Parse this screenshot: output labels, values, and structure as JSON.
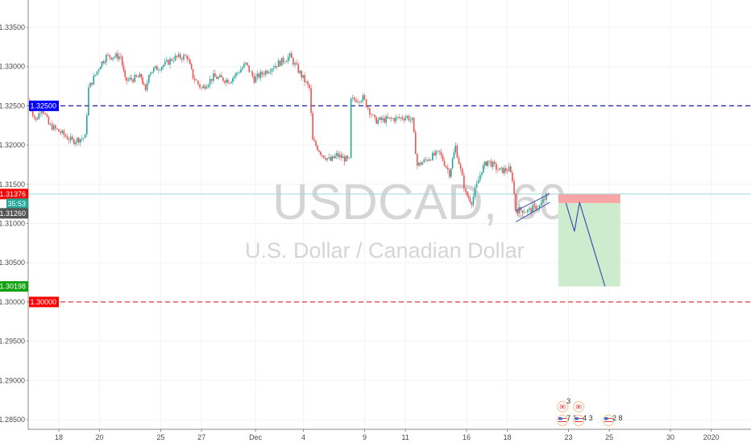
{
  "chart_data": {
    "type": "candlestick",
    "symbol_watermark": "USDCAD, 60",
    "description_watermark": "U.S. Dollar / Canadian Dollar",
    "ylim": [
      1.283,
      1.339
    ],
    "y_ticks": [
      "1.33500",
      "1.33000",
      "1.32500",
      "1.32000",
      "1.31500",
      "1.31000",
      "1.30500",
      "1.30000",
      "1.29500",
      "1.29000",
      "1.28500"
    ],
    "x_ticks": [
      {
        "date": "11-18",
        "label": "18"
      },
      {
        "date": "11-20",
        "label": "20"
      },
      {
        "date": "11-25",
        "label": "25"
      },
      {
        "date": "11-27",
        "label": "27"
      },
      {
        "date": "12-01",
        "label": "Dec"
      },
      {
        "date": "12-04",
        "label": "4"
      },
      {
        "date": "12-09",
        "label": "9"
      },
      {
        "date": "12-11",
        "label": "11"
      },
      {
        "date": "12-16",
        "label": "16"
      },
      {
        "date": "12-18",
        "label": "18"
      },
      {
        "date": "12-23",
        "label": "23"
      },
      {
        "date": "12-25",
        "label": "25"
      },
      {
        "date": "12-30",
        "label": "30"
      },
      {
        "date": "01-01",
        "label": "2020"
      }
    ],
    "grid": true,
    "colors": {
      "up": "#26a69a",
      "down": "#ef5350",
      "axis": "#888888",
      "grid": "#f3f3f3"
    },
    "price_path": [
      [
        "11-14 12",
        1.3257
      ],
      [
        "11-14 21",
        1.3231
      ],
      [
        "11-15 04",
        1.3249
      ],
      [
        "11-15 12",
        1.3226
      ],
      [
        "11-18 02",
        1.3216
      ],
      [
        "11-18 16",
        1.3205
      ],
      [
        "11-19 07",
        1.321
      ],
      [
        "11-19 11",
        1.3272
      ],
      [
        "11-20 01",
        1.3303
      ],
      [
        "11-20 08",
        1.3313
      ],
      [
        "11-21 01",
        1.3313
      ],
      [
        "11-21 06",
        1.3282
      ],
      [
        "11-22 01",
        1.3287
      ],
      [
        "11-22 06",
        1.3267
      ],
      [
        "11-22 10",
        1.3293
      ],
      [
        "11-25 05",
        1.3303
      ],
      [
        "11-25 15",
        1.3311
      ],
      [
        "11-26 07",
        1.3313
      ],
      [
        "11-26 14",
        1.3287
      ],
      [
        "11-27 00",
        1.3272
      ],
      [
        "11-27 14",
        1.3287
      ],
      [
        "11-28 09",
        1.3282
      ],
      [
        "11-29 04",
        1.3303
      ],
      [
        "11-29 14",
        1.3284
      ],
      [
        "12-02 09",
        1.3298
      ],
      [
        "12-03 08",
        1.3313
      ],
      [
        "12-03 18",
        1.3295
      ],
      [
        "12-04 07",
        1.3272
      ],
      [
        "12-04 11",
        1.3205
      ],
      [
        "12-04 22",
        1.3188
      ],
      [
        "12-05 08",
        1.318
      ],
      [
        "12-05 15",
        1.3187
      ],
      [
        "12-06 06",
        1.318
      ],
      [
        "12-06 08",
        1.3257
      ],
      [
        "12-06 22",
        1.326
      ],
      [
        "12-09 12",
        1.3231
      ],
      [
        "12-10 07",
        1.3233
      ],
      [
        "12-11 02",
        1.3236
      ],
      [
        "12-11 08",
        1.3231
      ],
      [
        "12-11 14",
        1.3174
      ],
      [
        "12-12 06",
        1.3185
      ],
      [
        "12-12 16",
        1.319
      ],
      [
        "12-13 04",
        1.3164
      ],
      [
        "12-13 11",
        1.3198
      ],
      [
        "12-13 23",
        1.3138
      ],
      [
        "12-16 06",
        1.3128
      ],
      [
        "12-16 18",
        1.3169
      ],
      [
        "12-17 01",
        1.318
      ],
      [
        "12-17 15",
        1.3167
      ],
      [
        "12-18 02",
        1.3169
      ],
      [
        "12-18 06",
        1.3157
      ],
      [
        "12-18 10",
        1.3118
      ],
      [
        "12-19 00",
        1.3116
      ],
      [
        "12-19 14",
        1.3122
      ],
      [
        "12-20 00",
        1.31376
      ]
    ],
    "horizontal_lines": [
      {
        "price": 1.325,
        "label": "1.32500",
        "color": "#1a1aa6",
        "label_bg": "#0000ff",
        "style": "dashed"
      },
      {
        "price": 1.3,
        "label": "1.30000",
        "color": "#e53935",
        "label_bg": "#ff0000",
        "style": "dashed"
      }
    ],
    "current_price": {
      "price": 1.31376,
      "label": "1.31376",
      "countdown": "35:53",
      "color": "#ff0000",
      "countdown_color": "#26a69a",
      "line_color": "#9ed8d3"
    },
    "channel": {
      "color": "#3f51b5",
      "lower": [
        [
          "12-18 10",
          1.3102
        ],
        [
          "12-20 02",
          1.3127
        ]
      ],
      "upper": [
        [
          "12-18 10",
          1.3116
        ],
        [
          "12-20 02",
          1.3138
        ]
      ]
    },
    "short_position": {
      "start": "12-20 12",
      "end": "12-25 13",
      "stop": 1.3138,
      "entry": 1.3126,
      "target": 1.30198,
      "entry_label": "1.31260",
      "target_label": "1.30198",
      "stop_color": "#f7a5a5",
      "target_color": "#cdeccd",
      "entry_label_bg": "#555555",
      "target_label_bg": "#11a211"
    },
    "projection": [
      [
        "12-20 21",
        1.3126
      ],
      [
        "12-23 07",
        1.309
      ],
      [
        "12-23 13",
        1.3127
      ],
      [
        "12-24 19",
        1.30198
      ]
    ],
    "events": [
      {
        "flag": "CA",
        "count": "3",
        "date": "12-20 17",
        "row": 1
      },
      {
        "flag": "CA",
        "count": "",
        "date": "12-23 12",
        "row": 1
      },
      {
        "flag": "US",
        "count": "7 13",
        "date": "12-20 17",
        "row": 2
      },
      {
        "flag": "US",
        "count": "4  3",
        "date": "12-23 12",
        "row": 2
      },
      {
        "flag": "US",
        "count": "2  8",
        "date": "12-24 23",
        "row": 2
      }
    ]
  }
}
